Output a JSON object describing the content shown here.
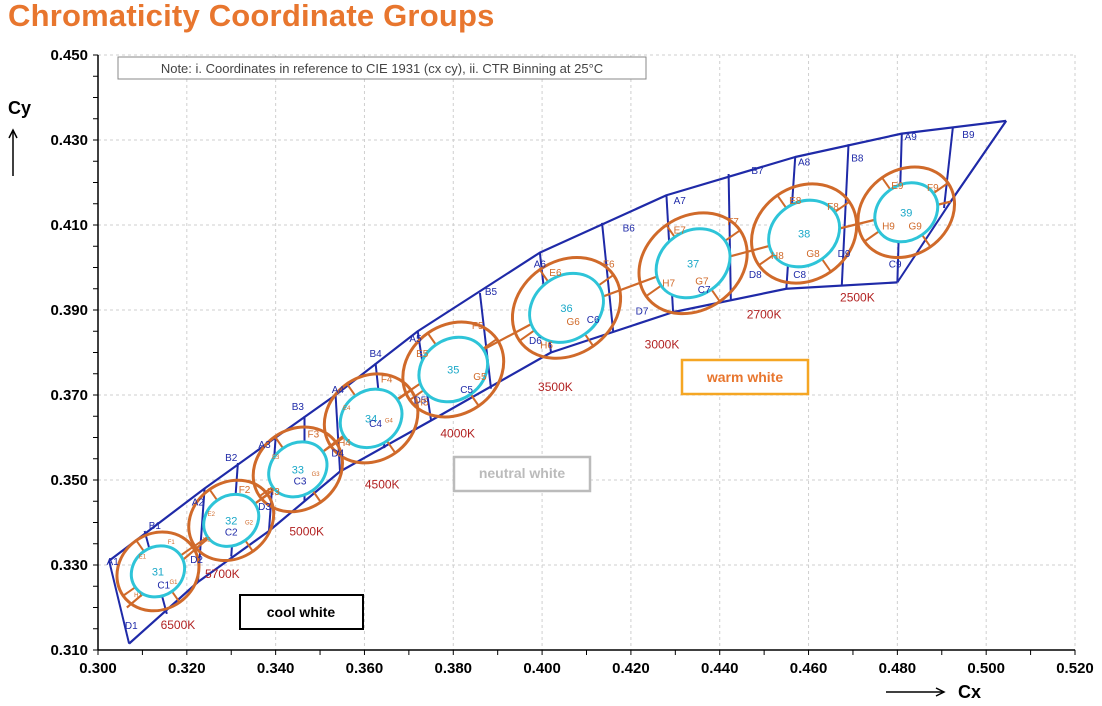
{
  "title": "Chromaticity Coordinate Groups",
  "chart_data": {
    "type": "scatter",
    "title": "Chromaticity Coordinate Groups",
    "xlabel": "Cx",
    "ylabel": "Cy",
    "xlim": [
      0.3,
      0.52
    ],
    "ylim": [
      0.31,
      0.45
    ],
    "x_ticks": [
      "0.300",
      "0.320",
      "0.340",
      "0.360",
      "0.380",
      "0.400",
      "0.420",
      "0.440",
      "0.460",
      "0.480",
      "0.500",
      "0.520"
    ],
    "y_ticks": [
      "0.310",
      "0.330",
      "0.350",
      "0.370",
      "0.390",
      "0.410",
      "0.430",
      "0.450"
    ],
    "grid": true,
    "note": "Note: i. Coordinates in reference to CIE 1931 (cx cy), ii. CTR Binning at 25°C",
    "regions": [
      {
        "label": "cool white",
        "color": "#000000"
      },
      {
        "label": "neutral white",
        "color": "#bbbbbb"
      },
      {
        "label": "warm white",
        "color": "#f5a623"
      }
    ],
    "cct_labels": [
      {
        "label": "6500K",
        "x": 0.318,
        "y": 0.315
      },
      {
        "label": "5700K",
        "x": 0.328,
        "y": 0.327
      },
      {
        "label": "5000K",
        "x": 0.347,
        "y": 0.337
      },
      {
        "label": "4500K",
        "x": 0.364,
        "y": 0.348
      },
      {
        "label": "4000K",
        "x": 0.381,
        "y": 0.36
      },
      {
        "label": "3500K",
        "x": 0.403,
        "y": 0.371
      },
      {
        "label": "3000K",
        "x": 0.427,
        "y": 0.381
      },
      {
        "label": "2700K",
        "x": 0.45,
        "y": 0.388
      },
      {
        "label": "2500K",
        "x": 0.471,
        "y": 0.392
      }
    ],
    "group_centers": [
      {
        "group": "31",
        "x": 0.3135,
        "y": 0.3285
      },
      {
        "group": "32",
        "x": 0.33,
        "y": 0.3405
      },
      {
        "group": "33",
        "x": 0.345,
        "y": 0.3525
      },
      {
        "group": "34",
        "x": 0.3615,
        "y": 0.3645
      },
      {
        "group": "35",
        "x": 0.38,
        "y": 0.376
      },
      {
        "group": "36",
        "x": 0.4055,
        "y": 0.3905
      },
      {
        "group": "37",
        "x": 0.434,
        "y": 0.401
      },
      {
        "group": "38",
        "x": 0.459,
        "y": 0.408
      },
      {
        "group": "39",
        "x": 0.482,
        "y": 0.413
      }
    ],
    "boundary": {
      "top": [
        [
          0.3025,
          0.331
        ],
        [
          0.324,
          0.348
        ],
        [
          0.34,
          0.36
        ],
        [
          0.3535,
          0.37
        ],
        [
          0.372,
          0.385
        ],
        [
          0.3995,
          0.4035
        ],
        [
          0.428,
          0.417
        ],
        [
          0.457,
          0.426
        ],
        [
          0.481,
          0.4315
        ],
        [
          0.5045,
          0.4345
        ]
      ],
      "bottom": [
        [
          0.307,
          0.3115
        ],
        [
          0.3225,
          0.326
        ],
        [
          0.3385,
          0.338
        ],
        [
          0.3545,
          0.352
        ],
        [
          0.375,
          0.364
        ],
        [
          0.402,
          0.38
        ],
        [
          0.4295,
          0.3895
        ],
        [
          0.455,
          0.395
        ],
        [
          0.48,
          0.3965
        ]
      ],
      "mid": [
        [
          0.3065,
          0.32
        ],
        [
          0.3245,
          0.336
        ],
        [
          0.3405,
          0.3485
        ],
        [
          0.356,
          0.361
        ],
        [
          0.373,
          0.373
        ],
        [
          0.399,
          0.3875
        ],
        [
          0.4275,
          0.3985
        ],
        [
          0.4545,
          0.406
        ],
        [
          0.478,
          0.412
        ],
        [
          0.492,
          0.4155
        ]
      ],
      "divs": [
        [
          [
            0.3025,
            0.331
          ],
          [
            0.307,
            0.3115
          ]
        ],
        [
          [
            0.3105,
            0.338
          ],
          [
            0.3155,
            0.3185
          ]
        ],
        [
          [
            0.324,
            0.348
          ],
          [
            0.3225,
            0.326
          ]
        ],
        [
          [
            0.3315,
            0.354
          ],
          [
            0.33,
            0.332
          ]
        ],
        [
          [
            0.34,
            0.36
          ],
          [
            0.3385,
            0.338
          ]
        ],
        [
          [
            0.3465,
            0.365
          ],
          [
            0.3465,
            0.345
          ]
        ],
        [
          [
            0.3535,
            0.37
          ],
          [
            0.3545,
            0.352
          ]
        ],
        [
          [
            0.3625,
            0.3775
          ],
          [
            0.3645,
            0.3575
          ]
        ],
        [
          [
            0.372,
            0.385
          ],
          [
            0.375,
            0.364
          ]
        ],
        [
          [
            0.386,
            0.394
          ],
          [
            0.3885,
            0.3715
          ]
        ],
        [
          [
            0.3995,
            0.4035
          ],
          [
            0.402,
            0.38
          ]
        ],
        [
          [
            0.4135,
            0.4105
          ],
          [
            0.416,
            0.385
          ]
        ],
        [
          [
            0.428,
            0.417
          ],
          [
            0.4295,
            0.3895
          ]
        ],
        [
          [
            0.442,
            0.422
          ],
          [
            0.4425,
            0.3925
          ]
        ],
        [
          [
            0.457,
            0.426
          ],
          [
            0.455,
            0.395
          ]
        ],
        [
          [
            0.469,
            0.429
          ],
          [
            0.4675,
            0.396
          ]
        ],
        [
          [
            0.481,
            0.4315
          ],
          [
            0.48,
            0.3965
          ]
        ],
        [
          [
            0.4925,
            0.433
          ],
          [
            0.4905,
            0.414
          ]
        ],
        [
          [
            0.5045,
            0.4345
          ],
          [
            0.492,
            0.4155
          ]
        ]
      ]
    },
    "ellipses": [
      {
        "group": "31",
        "cx": 0.3135,
        "cy": 0.3285,
        "rx_out": 0.0085,
        "ry_out": 0.01,
        "rx_in": 0.0055,
        "ry_in": 0.0065,
        "angle": 55
      },
      {
        "group": "32",
        "cx": 0.33,
        "cy": 0.3405,
        "rx_out": 0.0085,
        "ry_out": 0.0105,
        "rx_in": 0.0055,
        "ry_in": 0.0068,
        "angle": 55
      },
      {
        "group": "33",
        "cx": 0.345,
        "cy": 0.3525,
        "rx_out": 0.009,
        "ry_out": 0.011,
        "rx_in": 0.0058,
        "ry_in": 0.0072,
        "angle": 55
      },
      {
        "group": "34",
        "cx": 0.3615,
        "cy": 0.3645,
        "rx_out": 0.0095,
        "ry_out": 0.0115,
        "rx_in": 0.0062,
        "ry_in": 0.0076,
        "angle": 55
      },
      {
        "group": "35",
        "cx": 0.38,
        "cy": 0.376,
        "rx_out": 0.01,
        "ry_out": 0.0125,
        "rx_in": 0.0068,
        "ry_in": 0.0085,
        "angle": 55
      },
      {
        "group": "36",
        "cx": 0.4055,
        "cy": 0.3905,
        "rx_out": 0.0105,
        "ry_out": 0.0135,
        "rx_in": 0.0072,
        "ry_in": 0.0092,
        "angle": 55
      },
      {
        "group": "37",
        "cx": 0.434,
        "cy": 0.401,
        "rx_out": 0.0105,
        "ry_out": 0.0135,
        "rx_in": 0.0072,
        "ry_in": 0.0092,
        "angle": 55
      },
      {
        "group": "38",
        "cx": 0.459,
        "cy": 0.408,
        "rx_out": 0.0105,
        "ry_out": 0.013,
        "rx_in": 0.007,
        "ry_in": 0.0088,
        "angle": 55
      },
      {
        "group": "39",
        "cx": 0.482,
        "cy": 0.413,
        "rx_out": 0.0095,
        "ry_out": 0.012,
        "rx_in": 0.0062,
        "ry_in": 0.0078,
        "angle": 55
      }
    ],
    "bin_labels": [
      {
        "label": "A1",
        "x": 0.3033,
        "y": 0.33
      },
      {
        "label": "B1",
        "x": 0.3128,
        "y": 0.3385
      },
      {
        "label": "C1",
        "x": 0.3148,
        "y": 0.3245
      },
      {
        "label": "D1",
        "x": 0.3075,
        "y": 0.315
      },
      {
        "label": "A2",
        "x": 0.3225,
        "y": 0.344
      },
      {
        "label": "B2",
        "x": 0.33,
        "y": 0.3545
      },
      {
        "label": "C2",
        "x": 0.33,
        "y": 0.337
      },
      {
        "label": "D2",
        "x": 0.3222,
        "y": 0.3305
      },
      {
        "label": "A3",
        "x": 0.3375,
        "y": 0.3575
      },
      {
        "label": "B3",
        "x": 0.345,
        "y": 0.3665
      },
      {
        "label": "C3",
        "x": 0.3455,
        "y": 0.349
      },
      {
        "label": "D3",
        "x": 0.3375,
        "y": 0.343
      },
      {
        "label": "A4",
        "x": 0.354,
        "y": 0.3705
      },
      {
        "label": "B4",
        "x": 0.3625,
        "y": 0.379
      },
      {
        "label": "C4",
        "x": 0.3625,
        "y": 0.3625
      },
      {
        "label": "D4",
        "x": 0.354,
        "y": 0.3555
      },
      {
        "label": "A5",
        "x": 0.3715,
        "y": 0.3825
      },
      {
        "label": "B5",
        "x": 0.3885,
        "y": 0.3935
      },
      {
        "label": "C5",
        "x": 0.383,
        "y": 0.3705
      },
      {
        "label": "D5",
        "x": 0.3725,
        "y": 0.368
      },
      {
        "label": "A6",
        "x": 0.3995,
        "y": 0.4
      },
      {
        "label": "B6",
        "x": 0.4195,
        "y": 0.4085
      },
      {
        "label": "C6",
        "x": 0.4115,
        "y": 0.387
      },
      {
        "label": "D6",
        "x": 0.3985,
        "y": 0.382
      },
      {
        "label": "A7",
        "x": 0.431,
        "y": 0.415
      },
      {
        "label": "B7",
        "x": 0.4485,
        "y": 0.422
      },
      {
        "label": "C7",
        "x": 0.4365,
        "y": 0.394
      },
      {
        "label": "D7",
        "x": 0.4225,
        "y": 0.389
      },
      {
        "label": "A8",
        "x": 0.459,
        "y": 0.424
      },
      {
        "label": "B8",
        "x": 0.471,
        "y": 0.425
      },
      {
        "label": "C8",
        "x": 0.458,
        "y": 0.3975
      },
      {
        "label": "D8",
        "x": 0.448,
        "y": 0.3975
      },
      {
        "label": "A9",
        "x": 0.483,
        "y": 0.43
      },
      {
        "label": "B9",
        "x": 0.496,
        "y": 0.4305
      },
      {
        "label": "C9",
        "x": 0.4795,
        "y": 0.4
      },
      {
        "label": "D9",
        "x": 0.468,
        "y": 0.4025
      }
    ],
    "ellipse_labels": [
      {
        "label": "E1",
        "x": 0.31,
        "y": 0.3315,
        "small": true
      },
      {
        "label": "F1",
        "x": 0.3165,
        "y": 0.335,
        "small": true
      },
      {
        "label": "G1",
        "x": 0.317,
        "y": 0.3255,
        "small": true
      },
      {
        "label": "H1",
        "x": 0.309,
        "y": 0.3225,
        "small": true
      },
      {
        "label": "E2",
        "x": 0.3255,
        "y": 0.3415,
        "small": true
      },
      {
        "label": "F2",
        "x": 0.333,
        "y": 0.347,
        "small": false
      },
      {
        "label": "G2",
        "x": 0.334,
        "y": 0.3395,
        "small": true
      },
      {
        "label": "H2",
        "x": 0.3245,
        "y": 0.3355,
        "small": true
      },
      {
        "label": "E3",
        "x": 0.34,
        "y": 0.355,
        "small": true
      },
      {
        "label": "F3",
        "x": 0.3485,
        "y": 0.36,
        "small": false
      },
      {
        "label": "G3",
        "x": 0.349,
        "y": 0.351,
        "small": true
      },
      {
        "label": "H3",
        "x": 0.3395,
        "y": 0.3465,
        "small": false
      },
      {
        "label": "E4",
        "x": 0.356,
        "y": 0.3665,
        "small": true
      },
      {
        "label": "F4",
        "x": 0.365,
        "y": 0.373,
        "small": false
      },
      {
        "label": "G4",
        "x": 0.3655,
        "y": 0.3635,
        "small": true
      },
      {
        "label": "H4",
        "x": 0.3555,
        "y": 0.358,
        "small": false
      },
      {
        "label": "E5",
        "x": 0.373,
        "y": 0.379,
        "small": false
      },
      {
        "label": "F5",
        "x": 0.3855,
        "y": 0.3855,
        "small": false
      },
      {
        "label": "G5",
        "x": 0.386,
        "y": 0.3735,
        "small": false
      },
      {
        "label": "H5",
        "x": 0.373,
        "y": 0.3675,
        "small": false
      },
      {
        "label": "E6",
        "x": 0.403,
        "y": 0.398,
        "small": false
      },
      {
        "label": "F6",
        "x": 0.415,
        "y": 0.4,
        "small": false
      },
      {
        "label": "G6",
        "x": 0.407,
        "y": 0.3865,
        "small": false
      },
      {
        "label": "H6",
        "x": 0.401,
        "y": 0.381,
        "small": false
      },
      {
        "label": "E7",
        "x": 0.431,
        "y": 0.408,
        "small": false
      },
      {
        "label": "F7",
        "x": 0.443,
        "y": 0.41,
        "small": false
      },
      {
        "label": "G7",
        "x": 0.436,
        "y": 0.396,
        "small": false
      },
      {
        "label": "H7",
        "x": 0.4285,
        "y": 0.3955,
        "small": false
      },
      {
        "label": "E8",
        "x": 0.457,
        "y": 0.415,
        "small": false
      },
      {
        "label": "F8",
        "x": 0.4655,
        "y": 0.4135,
        "small": false
      },
      {
        "label": "G8",
        "x": 0.461,
        "y": 0.4025,
        "small": false
      },
      {
        "label": "H8",
        "x": 0.453,
        "y": 0.402,
        "small": false
      },
      {
        "label": "E9",
        "x": 0.48,
        "y": 0.4185,
        "small": false
      },
      {
        "label": "F9",
        "x": 0.488,
        "y": 0.418,
        "small": false
      },
      {
        "label": "G9",
        "x": 0.484,
        "y": 0.409,
        "small": false
      },
      {
        "label": "H9",
        "x": 0.478,
        "y": 0.409,
        "small": false
      }
    ]
  }
}
